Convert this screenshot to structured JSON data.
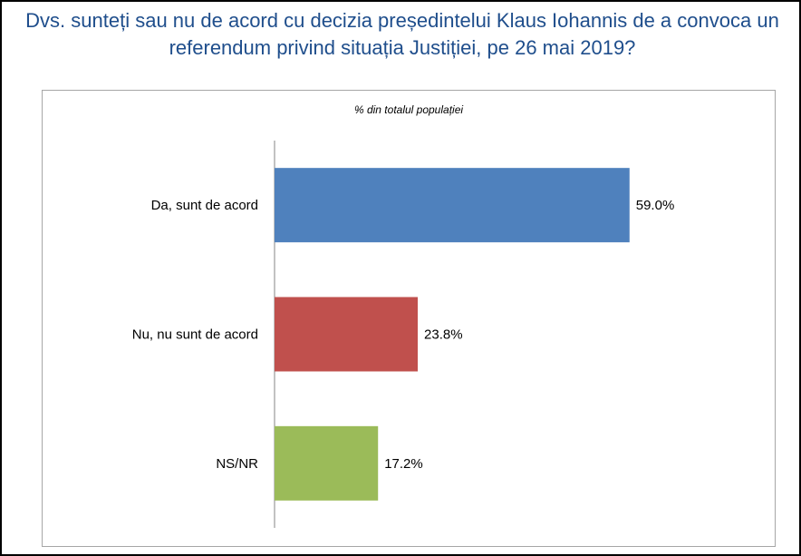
{
  "title": "Dvs. sunteți sau nu de acord cu decizia președintelui Klaus Iohannis de a convoca un referendum privind situația Justiției, pe 26 mai 2019?",
  "chart_data": {
    "type": "bar",
    "orientation": "horizontal",
    "subtitle": "% din totalul populației",
    "categories": [
      "Da, sunt de acord",
      "Nu, nu sunt de acord",
      "NS/NR"
    ],
    "values": [
      59.0,
      23.8,
      17.2
    ],
    "value_labels": [
      "59.0%",
      "23.8%",
      "17.2%"
    ],
    "colors": [
      "#4f81bd",
      "#c0504d",
      "#9bbb59"
    ],
    "xlim": [
      0,
      60
    ],
    "grid": false,
    "legend": "none"
  }
}
